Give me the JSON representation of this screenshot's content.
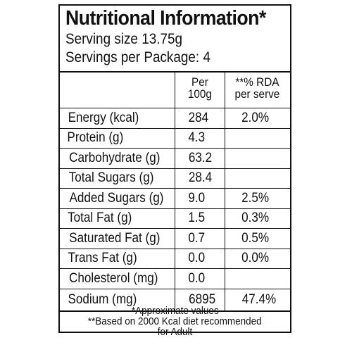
{
  "title": "Nutritional Information*",
  "serving_size": "Serving size 13.75g",
  "servings_per_package": "Servings per Package: 4",
  "header": {
    "per_100g_line1": "Per",
    "per_100g_line2": "100g",
    "rda_line1": "**% RDA",
    "rda_line2": "per serve"
  },
  "rows": [
    {
      "nutrient": "Energy (kcal)",
      "per100g": "284",
      "rda": "2.0%"
    },
    {
      "nutrient": "Protein (g)",
      "per100g": "4.3",
      "rda": ""
    },
    {
      "nutrient": "Carbohydrate (g)",
      "per100g": "63.2",
      "rda": ""
    },
    {
      "nutrient": "Total Sugars (g)",
      "per100g": "28.4",
      "rda": ""
    },
    {
      "nutrient": "Added Sugars (g)",
      "per100g": "9.0",
      "rda": "2.5%"
    },
    {
      "nutrient": "Total Fat (g)",
      "per100g": "1.5",
      "rda": "0.3%"
    },
    {
      "nutrient": "Saturated Fat (g)",
      "per100g": "0.7",
      "rda": "0.5%"
    },
    {
      "nutrient": "Trans Fat (g)",
      "per100g": "0.0",
      "rda": "0.0%"
    },
    {
      "nutrient": "Cholesterol (mg)",
      "per100g": "0.0",
      "rda": ""
    },
    {
      "nutrient": "Sodium (mg)",
      "per100g": "6895",
      "rda": "47.4%"
    }
  ],
  "footnotes": {
    "approx": "*Approximate values",
    "rda_basis_line1": "**Based on 2000 Kcal diet recommended",
    "rda_basis_line2": "for Adult"
  }
}
